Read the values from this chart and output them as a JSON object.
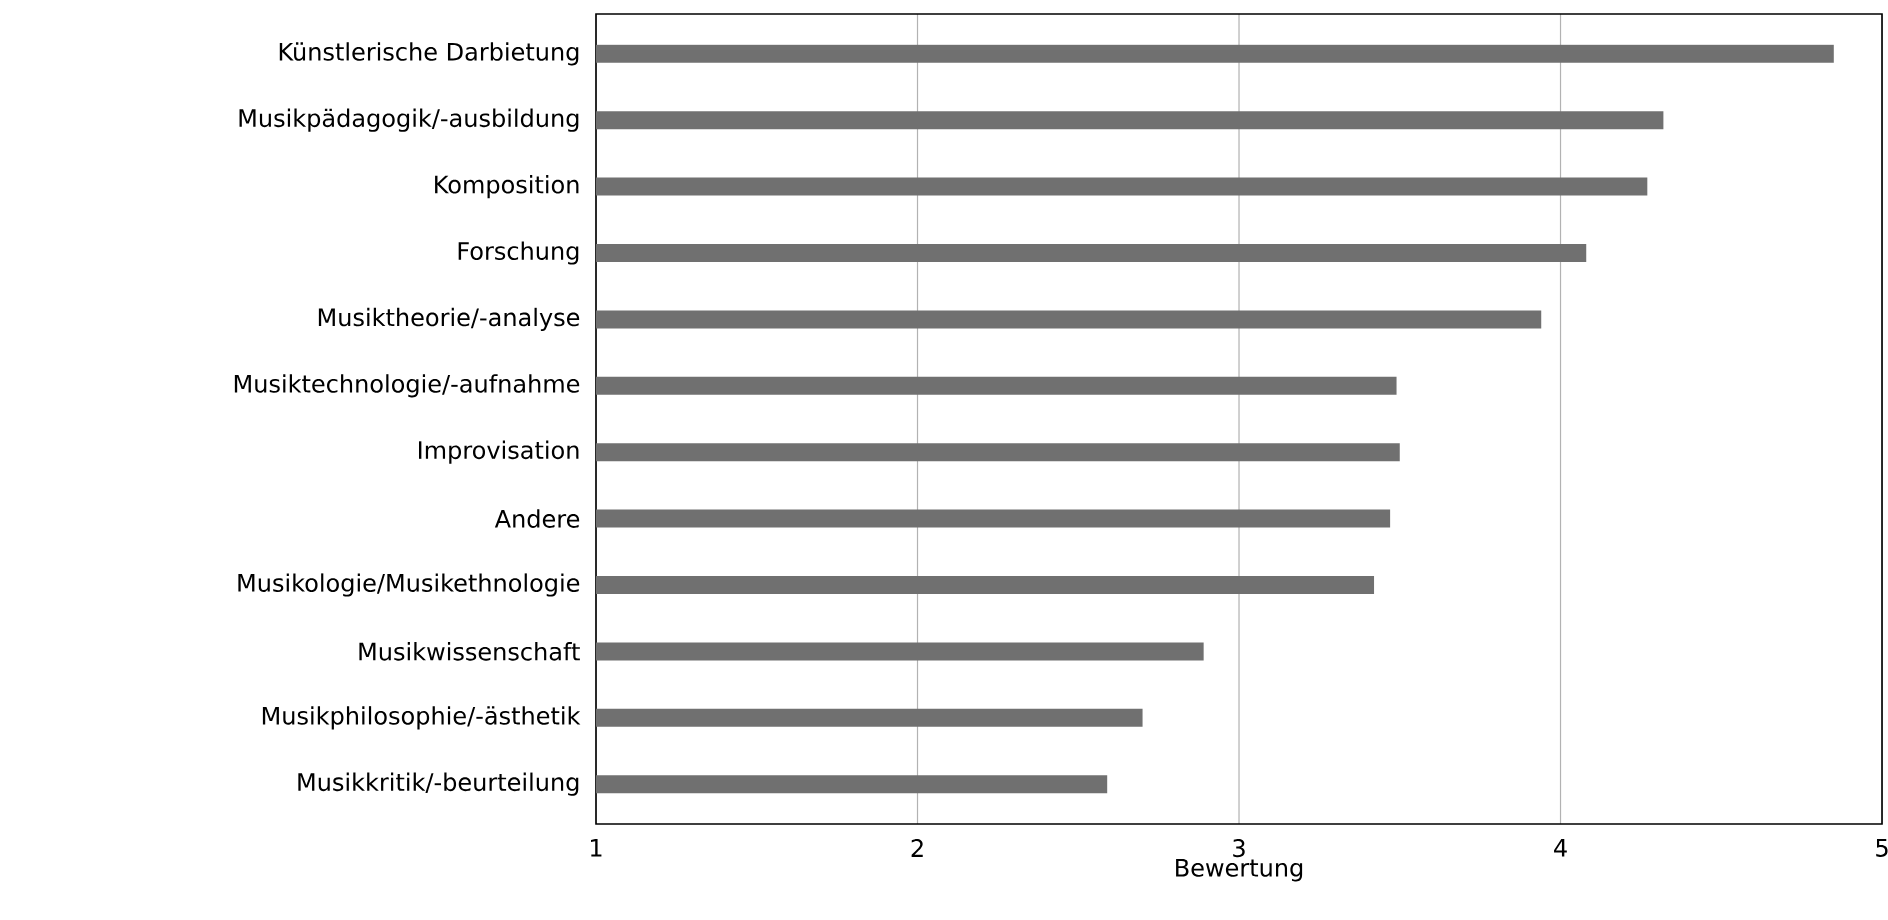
{
  "chart_data": {
    "type": "bar",
    "orientation": "horizontal",
    "xlabel": "Bewertung",
    "categories": [
      "Künstlerische Darbietung",
      "Musikpädagogik/-ausbildung",
      "Komposition",
      "Forschung",
      "Musiktheorie/-analyse",
      "Musiktechnologie/-aufnahme",
      "Improvisation",
      "Andere",
      "Musikologie/Musikethnologie",
      "Musikwissenschaft",
      "Musikphilosophie/-ästhetik",
      "Musikkritik/-beurteilung"
    ],
    "values": [
      4.85,
      4.32,
      4.27,
      4.08,
      3.94,
      3.49,
      3.5,
      3.47,
      3.42,
      2.89,
      2.7,
      2.59
    ],
    "color": "#707070",
    "xlim": [
      1,
      5
    ],
    "xticks": [
      1,
      2,
      3,
      4,
      5
    ],
    "grid": "x"
  }
}
